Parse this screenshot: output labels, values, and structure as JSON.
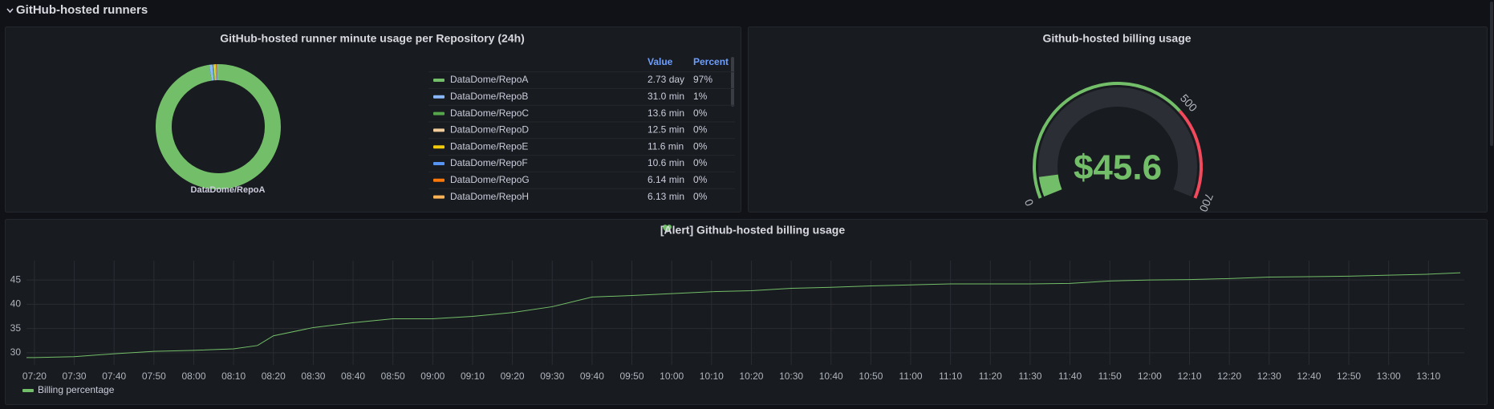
{
  "section_title": "GitHub-hosted runners",
  "chart_data": [
    {
      "type": "pie",
      "title": "GitHub-hosted runner minute usage per Repository (24h)",
      "categories": [
        "DataDome/RepoA",
        "DataDome/RepoB",
        "DataDome/RepoC",
        "DataDome/RepoD",
        "DataDome/RepoE",
        "DataDome/RepoF",
        "DataDome/RepoG",
        "DataDome/RepoH"
      ],
      "values": [
        3931.2,
        31.0,
        13.6,
        12.5,
        11.6,
        10.6,
        6.14,
        6.13
      ],
      "value_labels": [
        "2.73 day",
        "31.0 min",
        "13.6 min",
        "12.5 min",
        "11.6 min",
        "10.6 min",
        "6.14 min",
        "6.13 min"
      ],
      "percent_labels": [
        "97%",
        "1%",
        "0%",
        "0%",
        "0%",
        "0%",
        "0%",
        "0%"
      ],
      "colors": [
        "#73bf69",
        "#8ab8ff",
        "#56a64b",
        "#f2cc9a",
        "#f2cc0c",
        "#5794f2",
        "#ff780a",
        "#ffb357"
      ],
      "legend_headers": [
        "Value",
        "Percent"
      ]
    },
    {
      "type": "gauge",
      "title": "Github-hosted billing usage",
      "value": 45.6,
      "value_label": "$45.6",
      "lim": [
        0,
        700
      ],
      "ticks": [
        0,
        500,
        700
      ],
      "thresholds": [
        {
          "from": 0,
          "color": "#73bf69"
        },
        {
          "from": 500,
          "color": "#f2495c"
        }
      ]
    },
    {
      "type": "line",
      "title": "[Alert] Github-hosted billing usage",
      "x": [
        "07:18",
        "07:20",
        "07:30",
        "07:40",
        "07:50",
        "08:00",
        "08:10",
        "08:16",
        "08:20",
        "08:30",
        "08:40",
        "08:50",
        "09:00",
        "09:10",
        "09:20",
        "09:30",
        "09:40",
        "09:50",
        "10:00",
        "10:10",
        "10:20",
        "10:30",
        "10:40",
        "10:50",
        "11:00",
        "11:10",
        "11:20",
        "11:30",
        "11:40",
        "11:50",
        "12:00",
        "12:10",
        "12:20",
        "12:30",
        "12:40",
        "12:50",
        "13:00",
        "13:10",
        "13:18"
      ],
      "series": [
        {
          "name": "Billing percentage",
          "color": "#73bf69",
          "values": [
            29,
            29,
            29.2,
            29.8,
            30.3,
            30.5,
            30.8,
            31.5,
            33.5,
            35.2,
            36.2,
            37,
            37,
            37.5,
            38.3,
            39.5,
            41.5,
            41.8,
            42.2,
            42.6,
            42.8,
            43.3,
            43.5,
            43.8,
            44,
            44.2,
            44.2,
            44.2,
            44.3,
            44.8,
            45,
            45.1,
            45.3,
            45.6,
            45.7,
            45.8,
            46,
            46.2,
            46.5
          ]
        }
      ],
      "xlim": [
        "07:18",
        "13:19"
      ],
      "xticks": [
        "07:20",
        "07:30",
        "07:40",
        "07:50",
        "08:00",
        "08:10",
        "08:20",
        "08:30",
        "08:40",
        "08:50",
        "09:00",
        "09:10",
        "09:20",
        "09:30",
        "09:40",
        "09:50",
        "10:00",
        "10:10",
        "10:20",
        "10:30",
        "10:40",
        "10:50",
        "11:00",
        "11:10",
        "11:20",
        "11:30",
        "11:40",
        "11:50",
        "12:00",
        "12:10",
        "12:20",
        "12:30",
        "12:40",
        "12:50",
        "13:00",
        "13:10"
      ],
      "ylim": [
        27.5,
        49
      ],
      "yticks": [
        30,
        35,
        40,
        45
      ],
      "grid": true,
      "legend": "bottom-left"
    }
  ]
}
